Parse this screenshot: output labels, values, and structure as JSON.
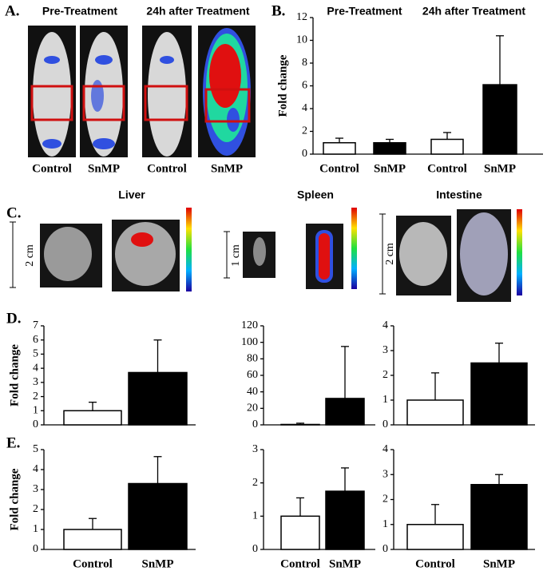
{
  "panel_labels": [
    "A.",
    "B.",
    "C.",
    "D.",
    "E."
  ],
  "panel_a": {
    "headers": [
      "Pre-Treatment",
      "24h after Treatment"
    ],
    "labels": [
      "Control",
      "SnMP",
      "Control",
      "SnMP"
    ]
  },
  "panel_c": {
    "organs": [
      "Liver",
      "Spleen",
      "Intestine"
    ],
    "scales": [
      "2 cm",
      "1 cm",
      "2 cm"
    ]
  },
  "chart_data": [
    {
      "type": "bar",
      "ylabel": "Fold change",
      "annotations": [
        "Pre-Treatment",
        "24h after Treatment"
      ],
      "categories": [
        "Control",
        "SnMP",
        "Control",
        "SnMP"
      ],
      "values": [
        1.0,
        1.0,
        1.3,
        6.1
      ],
      "errors": [
        0.4,
        0.3,
        0.6,
        4.3
      ],
      "colors": [
        "#ffffff",
        "#000000",
        "#ffffff",
        "#000000"
      ],
      "ylim": [
        0,
        12
      ],
      "yticks": [
        0,
        2,
        4,
        6,
        8,
        10,
        12
      ]
    },
    {
      "type": "bar",
      "ylabel": "Fold change",
      "categories": [
        null,
        null
      ],
      "values": [
        1.0,
        3.7
      ],
      "errors": [
        0.6,
        2.3
      ],
      "colors": [
        "#ffffff",
        "#000000"
      ],
      "ylim": [
        0,
        7
      ],
      "yticks": [
        0,
        1,
        2,
        3,
        4,
        5,
        6,
        7
      ]
    },
    {
      "type": "bar",
      "categories": [
        null,
        null
      ],
      "values": [
        0.5,
        32
      ],
      "errors": [
        1.5,
        63
      ],
      "colors": [
        "#ffffff",
        "#000000"
      ],
      "ylim": [
        0,
        120
      ],
      "yticks": [
        0,
        20,
        40,
        60,
        80,
        100,
        120
      ]
    },
    {
      "type": "bar",
      "categories": [
        null,
        null
      ],
      "values": [
        1.0,
        2.5
      ],
      "errors": [
        1.1,
        0.8
      ],
      "colors": [
        "#ffffff",
        "#000000"
      ],
      "ylim": [
        0,
        4
      ],
      "yticks": [
        0,
        1,
        2,
        3,
        4
      ]
    },
    {
      "type": "bar",
      "ylabel": "Fold change",
      "categories": [
        "Control",
        "SnMP"
      ],
      "values": [
        1.0,
        3.3
      ],
      "errors": [
        0.55,
        1.35
      ],
      "colors": [
        "#ffffff",
        "#000000"
      ],
      "ylim": [
        0,
        5
      ],
      "yticks": [
        0,
        1,
        2,
        3,
        4,
        5
      ]
    },
    {
      "type": "bar",
      "categories": [
        "Control",
        "SnMP"
      ],
      "values": [
        1.0,
        1.75
      ],
      "errors": [
        0.55,
        0.7
      ],
      "colors": [
        "#ffffff",
        "#000000"
      ],
      "ylim": [
        0,
        3
      ],
      "yticks": [
        0,
        1,
        2,
        3
      ]
    },
    {
      "type": "bar",
      "categories": [
        "Control",
        "SnMP"
      ],
      "values": [
        1.0,
        2.6
      ],
      "errors": [
        0.8,
        0.4
      ],
      "colors": [
        "#ffffff",
        "#000000"
      ],
      "ylim": [
        0,
        4
      ],
      "yticks": [
        0,
        1,
        2,
        3,
        4
      ]
    }
  ]
}
